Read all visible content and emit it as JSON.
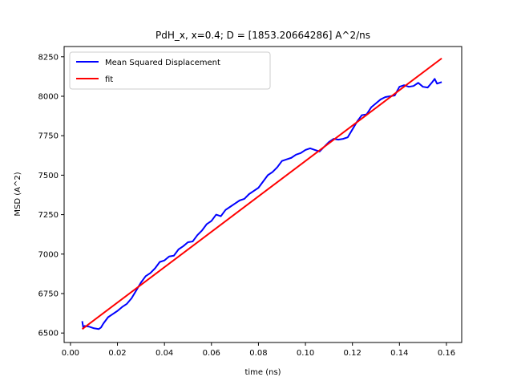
{
  "chart_data": {
    "type": "line",
    "title": "PdH_x, x=0.4; D = [1853.20664286] A^2/ns",
    "xlabel": "time (ns)",
    "ylabel": "MSD (A^2)",
    "xlim": [
      -0.0027,
      0.1665
    ],
    "ylim": [
      6440,
      8315
    ],
    "xticks": [
      0.0,
      0.02,
      0.04,
      0.06,
      0.08,
      0.1,
      0.12,
      0.14,
      0.16
    ],
    "xtick_labels": [
      "0.00",
      "0.02",
      "0.04",
      "0.06",
      "0.08",
      "0.10",
      "0.12",
      "0.14",
      "0.16"
    ],
    "yticks": [
      6500,
      6750,
      7000,
      7250,
      7500,
      7750,
      8000,
      8250
    ],
    "ytick_labels": [
      "6500",
      "6750",
      "7000",
      "7250",
      "7500",
      "7750",
      "8000",
      "8250"
    ],
    "grid": false,
    "legend_position": "top-left",
    "series": [
      {
        "name": "Mean Squared Displacement",
        "color": "#0000ff",
        "x": [
          0.005,
          0.0055,
          0.006,
          0.008,
          0.01,
          0.012,
          0.013,
          0.014,
          0.016,
          0.018,
          0.02,
          0.022,
          0.024,
          0.026,
          0.028,
          0.03,
          0.032,
          0.034,
          0.036,
          0.038,
          0.04,
          0.042,
          0.044,
          0.046,
          0.048,
          0.05,
          0.052,
          0.054,
          0.056,
          0.058,
          0.06,
          0.062,
          0.064,
          0.066,
          0.068,
          0.07,
          0.072,
          0.074,
          0.076,
          0.078,
          0.08,
          0.082,
          0.084,
          0.086,
          0.088,
          0.09,
          0.092,
          0.094,
          0.096,
          0.098,
          0.1,
          0.102,
          0.104,
          0.106,
          0.108,
          0.11,
          0.112,
          0.114,
          0.116,
          0.118,
          0.12,
          0.122,
          0.124,
          0.126,
          0.128,
          0.13,
          0.132,
          0.134,
          0.136,
          0.138,
          0.14,
          0.142,
          0.144,
          0.146,
          0.148,
          0.15,
          0.152,
          0.154,
          0.155,
          0.156,
          0.157,
          0.158
        ],
        "y": [
          6575,
          6530,
          6545,
          6540,
          6530,
          6525,
          6535,
          6560,
          6600,
          6620,
          6640,
          6665,
          6685,
          6720,
          6770,
          6820,
          6860,
          6880,
          6910,
          6950,
          6960,
          6985,
          6990,
          7030,
          7050,
          7075,
          7080,
          7120,
          7150,
          7190,
          7210,
          7250,
          7240,
          7280,
          7300,
          7320,
          7340,
          7350,
          7380,
          7400,
          7420,
          7460,
          7500,
          7520,
          7550,
          7590,
          7600,
          7610,
          7630,
          7640,
          7660,
          7670,
          7660,
          7650,
          7680,
          7710,
          7730,
          7725,
          7730,
          7740,
          7790,
          7840,
          7880,
          7885,
          7930,
          7955,
          7980,
          7995,
          8000,
          8005,
          8060,
          8070,
          8060,
          8065,
          8085,
          8060,
          8055,
          8090,
          8110,
          8080,
          8085,
          8090
        ]
      },
      {
        "name": "fit",
        "color": "#ff0000",
        "x": [
          0.005,
          0.158
        ],
        "y": [
          6525,
          8240
        ]
      }
    ]
  }
}
